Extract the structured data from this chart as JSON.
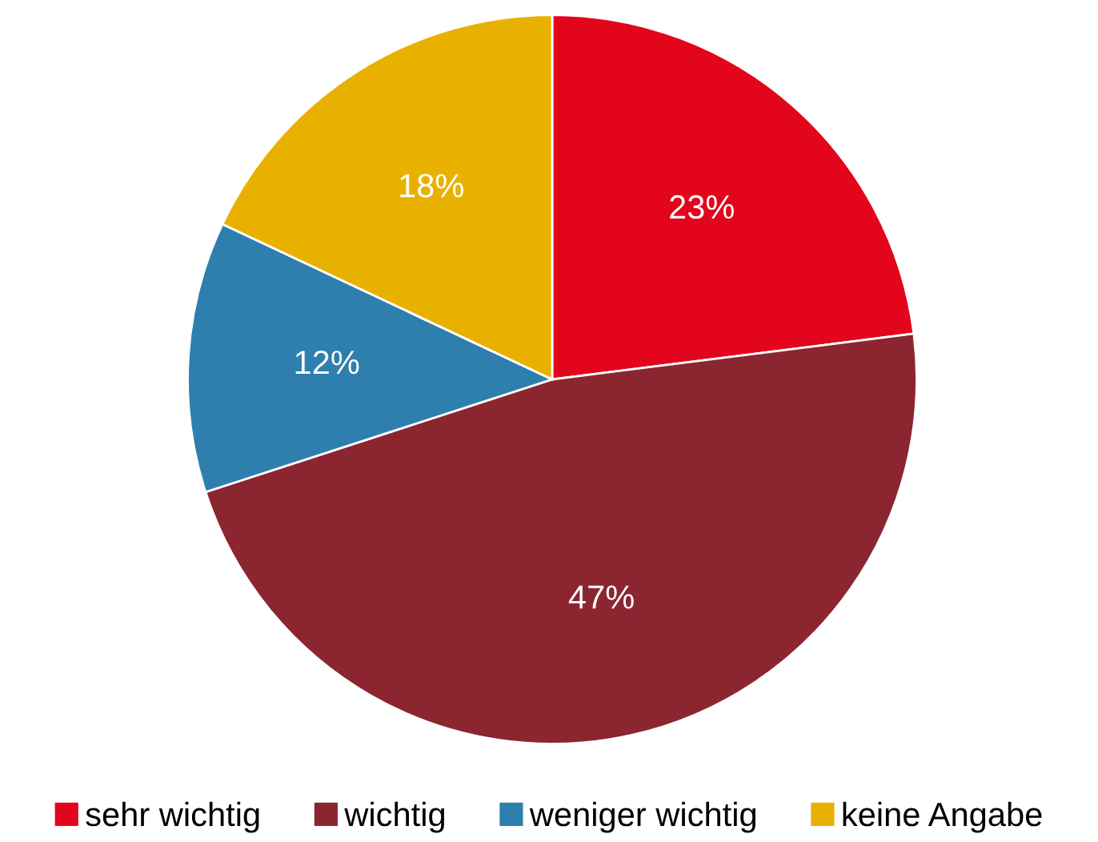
{
  "chart_data": {
    "type": "pie",
    "categories": [
      "sehr wichtig",
      "wichtig",
      "weniger wichtig",
      "keine Angabe"
    ],
    "values": [
      23,
      47,
      12,
      18
    ],
    "colors": [
      "#e2051b",
      "#8b2630",
      "#2e7fae",
      "#e8b100"
    ],
    "value_labels": [
      "23%",
      "47%",
      "12%",
      "18%"
    ],
    "legend": "bottom"
  }
}
